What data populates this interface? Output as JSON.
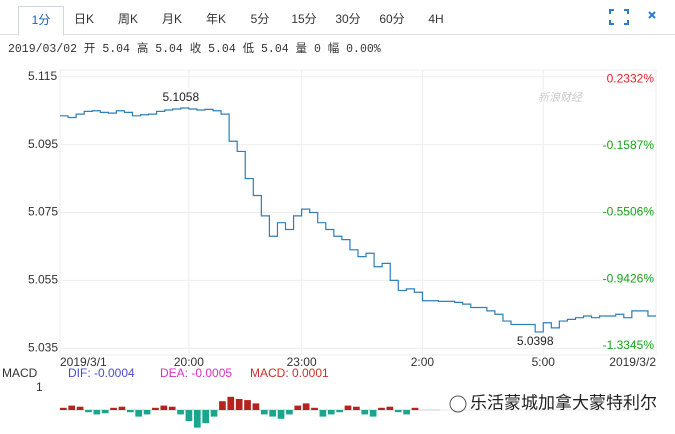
{
  "tabs": [
    "1分",
    "日K",
    "周K",
    "月K",
    "年K",
    "5分",
    "15分",
    "30分",
    "60分",
    "4H"
  ],
  "info": "2019/03/02 开 5.04 高 5.04 收 5.04 低 5.04 量 0 幅 0.00%",
  "watermark": "新浪财经",
  "overlay": "乐活蒙城加拿大蒙特利尔",
  "chart_data": {
    "type": "line",
    "categories": [
      "2019/3/1",
      null,
      null,
      null,
      null,
      null,
      null,
      null,
      null,
      null,
      null,
      null,
      null,
      null,
      null,
      null,
      "20:00",
      null,
      null,
      null,
      null,
      null,
      null,
      null,
      null,
      null,
      null,
      null,
      null,
      null,
      "23:00",
      null,
      null,
      null,
      null,
      null,
      null,
      null,
      null,
      null,
      null,
      null,
      null,
      null,
      null,
      "2:00",
      null,
      null,
      null,
      null,
      null,
      null,
      null,
      null,
      null,
      null,
      null,
      null,
      null,
      null,
      "5:00",
      null,
      null,
      null,
      null,
      null,
      null,
      null,
      null,
      null,
      null,
      null,
      null,
      null,
      "2019/3/2"
    ],
    "series": [
      {
        "name": "price",
        "color": "#2f7fb8",
        "values": [
          5.1035,
          5.103,
          5.104,
          5.1048,
          5.105,
          5.1045,
          5.1043,
          5.105,
          5.1045,
          5.1035,
          5.1038,
          5.104,
          5.1048,
          5.1052,
          5.1055,
          5.1058,
          5.1055,
          5.1052,
          5.1054,
          5.105,
          5.104,
          5.096,
          5.093,
          5.085,
          5.08,
          5.074,
          5.068,
          5.072,
          5.07,
          5.074,
          5.076,
          5.075,
          5.072,
          5.07,
          5.068,
          5.067,
          5.064,
          5.062,
          5.063,
          5.059,
          5.06,
          5.055,
          5.052,
          5.0525,
          5.0515,
          5.049,
          5.049,
          5.0488,
          5.0488,
          5.0485,
          5.048,
          5.047,
          5.047,
          5.046,
          5.045,
          5.043,
          5.042,
          5.042,
          5.042,
          5.0398,
          5.0425,
          5.041,
          5.043,
          5.0435,
          5.044,
          5.0445,
          5.044,
          5.0445,
          5.0445,
          5.045,
          5.044,
          5.046,
          5.046,
          5.0445,
          5.0445
        ]
      }
    ],
    "annotations": [
      "5.1058",
      "5.0398"
    ],
    "ylim": [
      5.033,
      5.117
    ],
    "yticks": [
      5.115,
      5.095,
      5.075,
      5.055,
      5.035
    ],
    "y2lim": [
      -1.3888,
      0.2875
    ],
    "y2ticks": [
      {
        "value": 0.2332,
        "label": "0.2332%"
      },
      {
        "value": -0.1587,
        "label": "-0.1587%"
      },
      {
        "value": -0.5506,
        "label": "-0.5506%"
      },
      {
        "value": -0.9426,
        "label": "-0.9426%"
      },
      {
        "value": -1.3345,
        "label": "-1.3345%"
      }
    ],
    "grid": true,
    "macd": {
      "title": "MACD",
      "dif": "DIF: -0.0004",
      "dea": "DEA: -0.0005",
      "macd": "MACD: 0.0001",
      "ylabel": "1",
      "ylim": [
        -1,
        1
      ],
      "values": [
        0.1,
        0.2,
        0.15,
        -0.1,
        -0.2,
        -0.15,
        0.1,
        0.15,
        -0.1,
        -0.3,
        -0.2,
        0.1,
        0.2,
        0.15,
        -0.2,
        -0.5,
        -0.8,
        -0.6,
        -0.3,
        0.4,
        0.6,
        0.5,
        0.45,
        0.3,
        -0.2,
        -0.3,
        -0.4,
        -0.2,
        0.2,
        0.3,
        0.1,
        -0.3,
        -0.2,
        -0.1,
        0.2,
        0.15,
        -0.2,
        -0.3,
        0.1,
        0.15,
        -0.1,
        -0.2,
        0.1
      ]
    }
  }
}
